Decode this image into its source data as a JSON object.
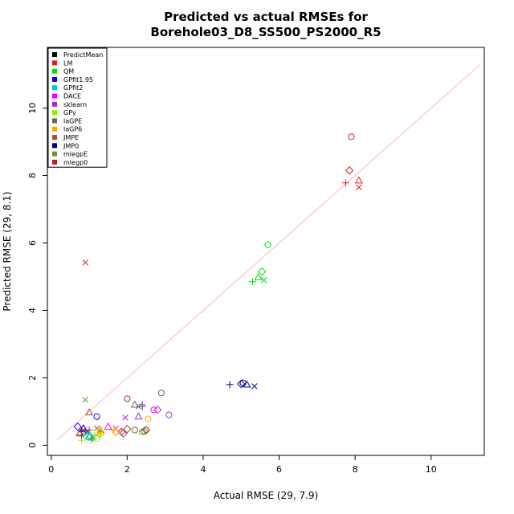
{
  "chart_data": {
    "type": "scatter",
    "title": [
      "Predicted vs actual RMSEs for",
      "Borehole03_D8_SS500_PS2000_R5"
    ],
    "xlabel": "Actual RMSE (29, 7.9)",
    "ylabel": "Predicted RMSE (29, 8.1)",
    "xlim": [
      -0.1,
      11.4
    ],
    "ylim": [
      -0.3,
      11.8
    ],
    "xticks": [
      0,
      2,
      4,
      6,
      8,
      10
    ],
    "yticks": [
      0,
      2,
      4,
      6,
      8,
      10
    ],
    "tick_labels_x": [
      "0",
      "2",
      "4",
      "6",
      "8",
      "10"
    ],
    "tick_labels_y": [
      "0",
      "2",
      "4",
      "6",
      "8",
      "10"
    ],
    "grid": false,
    "legend_position": "top-left",
    "reference_line": {
      "x": [
        0.15,
        11.3
      ],
      "y": [
        0.15,
        11.3
      ],
      "color": "#ffb6c1"
    },
    "marker_shapes": [
      "circle",
      "triangle",
      "plus",
      "cross",
      "diamond"
    ],
    "series": [
      {
        "name": "PredictMean",
        "color": "#000000",
        "points": []
      },
      {
        "name": "LM",
        "color": "#e41a1c",
        "points": [
          [
            7.9,
            9.15,
            "circle"
          ],
          [
            8.1,
            7.85,
            "triangle"
          ],
          [
            7.75,
            7.78,
            "plus"
          ],
          [
            8.1,
            7.65,
            "cross"
          ],
          [
            7.85,
            8.15,
            "diamond"
          ],
          [
            0.9,
            5.42,
            "cross"
          ],
          [
            1.0,
            11.3,
            "plus"
          ]
        ]
      },
      {
        "name": "QM",
        "color": "#00dd00",
        "points": [
          [
            5.7,
            5.95,
            "circle"
          ],
          [
            5.45,
            4.98,
            "triangle"
          ],
          [
            5.3,
            4.85,
            "plus"
          ],
          [
            5.6,
            4.9,
            "cross"
          ],
          [
            5.55,
            5.15,
            "diamond"
          ]
        ]
      },
      {
        "name": "GPfit1.95",
        "color": "#0000ff",
        "points": [
          [
            1.2,
            0.85,
            "circle"
          ],
          [
            0.85,
            0.5,
            "triangle"
          ],
          [
            0.8,
            0.4,
            "plus"
          ],
          [
            0.95,
            0.4,
            "cross"
          ],
          [
            0.7,
            0.55,
            "diamond"
          ]
        ]
      },
      {
        "name": "GPfit2",
        "color": "#00cccc",
        "points": [
          [
            0.9,
            0.3,
            "circle"
          ],
          [
            1.0,
            0.25,
            "triangle"
          ],
          [
            1.05,
            0.15,
            "plus"
          ],
          [
            1.1,
            0.25,
            "cross"
          ],
          [
            1.0,
            0.3,
            "diamond"
          ]
        ]
      },
      {
        "name": "DACE",
        "color": "#ff00ff",
        "points": [
          [
            2.7,
            1.05,
            "circle"
          ],
          [
            1.5,
            0.55,
            "triangle"
          ],
          [
            1.3,
            0.4,
            "plus"
          ],
          [
            1.7,
            0.5,
            "cross"
          ],
          [
            1.85,
            0.4,
            "diamond"
          ]
        ]
      },
      {
        "name": "sklearn",
        "color": "#9933cc",
        "points": [
          [
            3.1,
            0.9,
            "circle"
          ],
          [
            2.3,
            0.85,
            "triangle"
          ],
          [
            2.4,
            1.2,
            "plus"
          ],
          [
            1.95,
            0.82,
            "cross"
          ],
          [
            2.8,
            1.05,
            "diamond"
          ]
        ]
      },
      {
        "name": "GPy",
        "color": "#99ee00",
        "points": [
          [
            1.2,
            0.2,
            "circle"
          ],
          [
            1.3,
            0.4,
            "triangle"
          ],
          [
            0.8,
            0.15,
            "plus"
          ],
          [
            1.2,
            0.3,
            "cross"
          ],
          [
            1.3,
            0.35,
            "diamond"
          ]
        ]
      },
      {
        "name": "laGPE",
        "color": "#666666",
        "points": [
          [
            2.9,
            1.55,
            "circle"
          ],
          [
            2.2,
            1.2,
            "triangle"
          ],
          [
            2.4,
            1.15,
            "plus"
          ],
          [
            2.3,
            1.15,
            "cross"
          ],
          [
            1.9,
            0.35,
            "diamond"
          ]
        ]
      },
      {
        "name": "laGP6",
        "color": "#ffa500",
        "points": [
          [
            2.55,
            0.78,
            "circle"
          ],
          [
            1.3,
            0.45,
            "triangle"
          ],
          [
            1.65,
            0.45,
            "plus"
          ],
          [
            1.8,
            0.4,
            "cross"
          ],
          [
            1.7,
            0.4,
            "diamond"
          ]
        ]
      },
      {
        "name": "JMPE",
        "color": "#a0522d",
        "points": [
          [
            2.2,
            0.45,
            "circle"
          ],
          [
            1.0,
            0.97,
            "triangle"
          ],
          [
            1.0,
            0.45,
            "plus"
          ],
          [
            1.2,
            0.5,
            "cross"
          ],
          [
            2.0,
            0.48,
            "diamond"
          ]
        ]
      },
      {
        "name": "JMP0",
        "color": "#000080",
        "points": [
          [
            5.05,
            1.85,
            "circle"
          ],
          [
            5.15,
            1.8,
            "triangle"
          ],
          [
            4.7,
            1.8,
            "plus"
          ],
          [
            5.35,
            1.75,
            "cross"
          ],
          [
            5.0,
            1.82,
            "diamond"
          ]
        ]
      },
      {
        "name": "mlegpE",
        "color": "#669933",
        "points": [
          [
            2.4,
            0.4,
            "circle"
          ],
          [
            1.0,
            0.25,
            "triangle"
          ],
          [
            0.9,
            1.35,
            "cross"
          ],
          [
            1.1,
            0.2,
            "plus"
          ],
          [
            2.45,
            0.42,
            "diamond"
          ]
        ]
      },
      {
        "name": "mlegp0",
        "color": "#b22222",
        "points": [
          [
            2.0,
            1.38,
            "circle"
          ],
          [
            0.75,
            0.35,
            "triangle"
          ],
          [
            0.8,
            0.3,
            "plus"
          ],
          [
            0.85,
            0.45,
            "cross"
          ],
          [
            2.5,
            0.45,
            "diamond"
          ]
        ]
      }
    ]
  }
}
